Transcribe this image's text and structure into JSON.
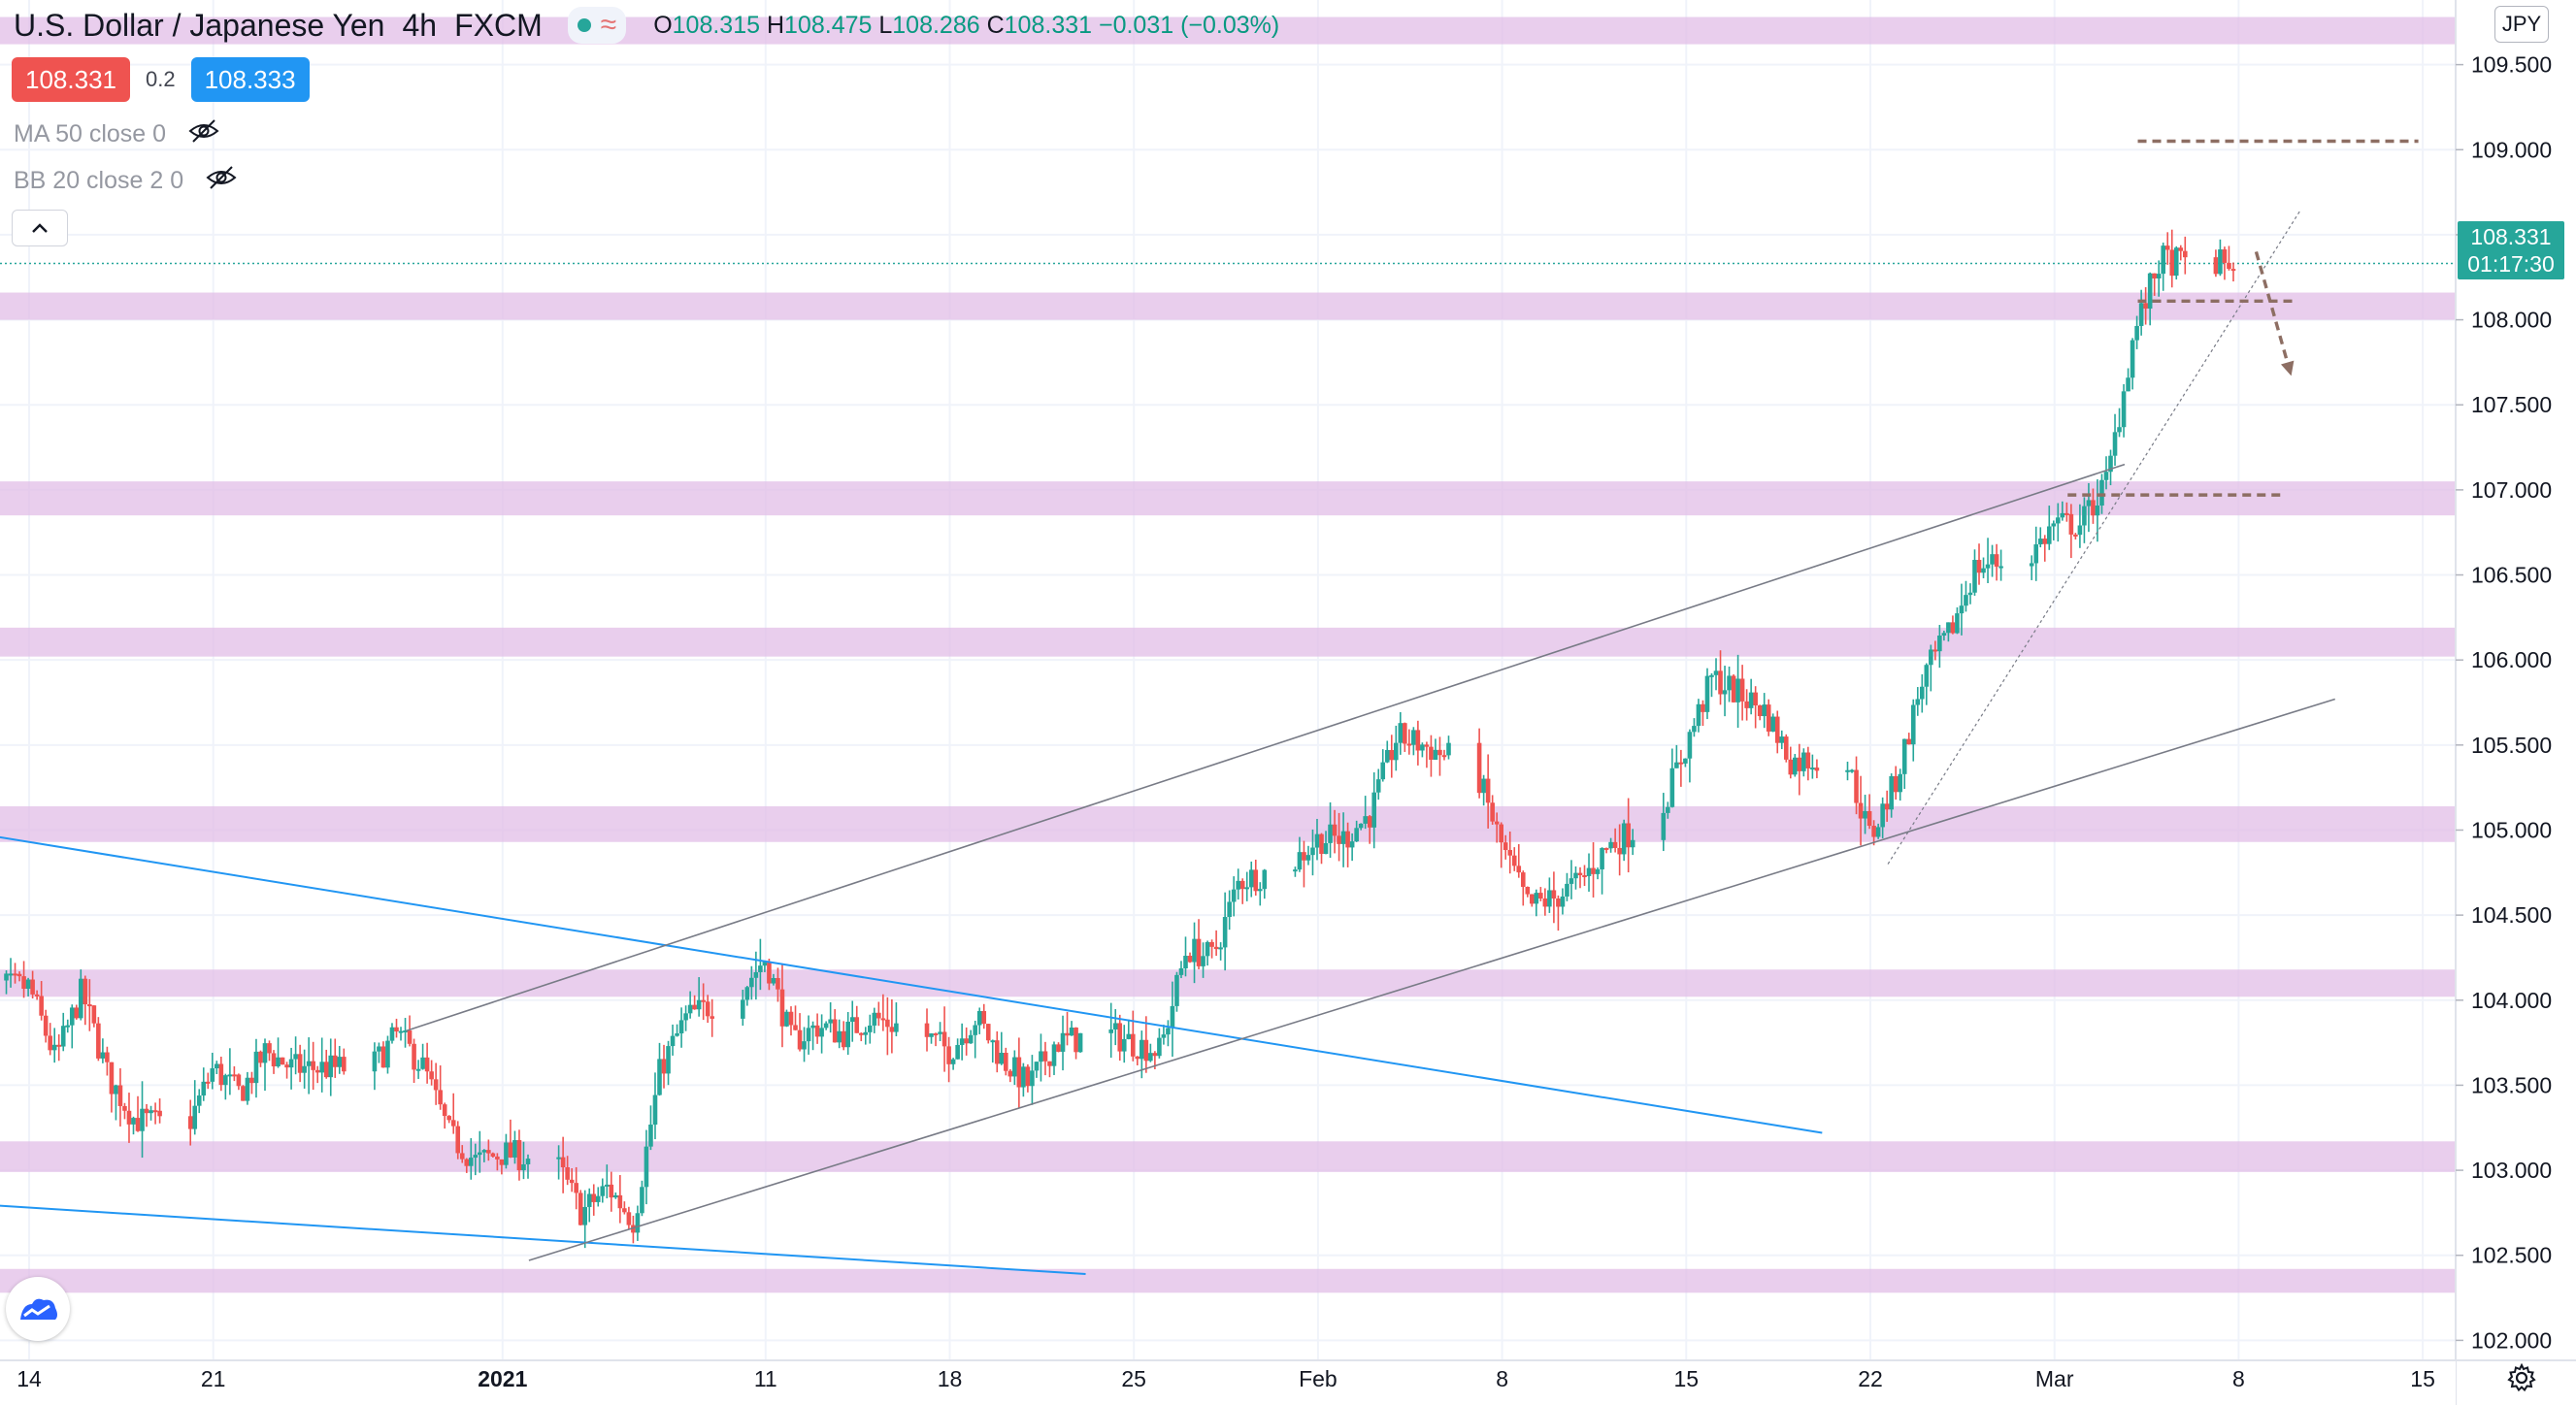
{
  "header": {
    "symbol_title": "U.S. Dollar / Japanese Yen",
    "interval": "4h",
    "source": "FXCM",
    "ohlc": {
      "open_label": "O",
      "open": "108.315",
      "high_label": "H",
      "high": "108.475",
      "low_label": "L",
      "low": "108.286",
      "close_label": "C",
      "close": "108.331",
      "change": "−0.031 (−0.03%)"
    }
  },
  "trade": {
    "sell_price": "108.331",
    "spread": "0.2",
    "buy_price": "108.333"
  },
  "indicators": [
    {
      "label": "MA 50 close 0",
      "icon": "eye-crossed-icon"
    },
    {
      "label": "BB 20 close 2 0",
      "icon": "eye-crossed-icon"
    }
  ],
  "price_axis": {
    "currency": "JPY",
    "last_price": "108.331",
    "countdown": "01:17:30"
  },
  "colors": {
    "up": "#26a69a",
    "down": "#ef5350",
    "zone": "#e1bee7",
    "trend_blue": "#2196f3",
    "channel": "#787b86",
    "dashed": "#8d6e63",
    "sell": "#ef5350",
    "buy": "#2196f3"
  },
  "chart_data": {
    "type": "candlestick",
    "y_axis": {
      "min": 101.62,
      "max": 109.88,
      "ticks": [
        102.0,
        102.5,
        103.0,
        103.5,
        104.0,
        104.5,
        105.0,
        105.5,
        106.0,
        106.5,
        107.0,
        107.5,
        108.0,
        108.5,
        109.0,
        109.5
      ]
    },
    "x_axis": {
      "labels": [
        {
          "text": "14",
          "date": "2020-12-14"
        },
        {
          "text": "21",
          "date": "2020-12-21"
        },
        {
          "text": "2021",
          "date": "2021-01-01",
          "bold": true
        },
        {
          "text": "11",
          "date": "2021-01-11"
        },
        {
          "text": "18",
          "date": "2021-01-18"
        },
        {
          "text": "25",
          "date": "2021-01-25"
        },
        {
          "text": "Feb",
          "date": "2021-02-01"
        },
        {
          "text": "8",
          "date": "2021-02-08"
        },
        {
          "text": "15",
          "date": "2021-02-15"
        },
        {
          "text": "22",
          "date": "2021-02-22"
        },
        {
          "text": "Mar",
          "date": "2021-03-01"
        },
        {
          "text": "8",
          "date": "2021-03-08"
        },
        {
          "text": "15",
          "date": "2021-03-15"
        }
      ]
    },
    "close_path": [
      [
        "2020-12-14",
        104.08
      ],
      [
        "2020-12-15",
        103.65
      ],
      [
        "2020-12-16",
        104.05
      ],
      [
        "2020-12-17",
        103.55
      ],
      [
        "2020-12-18",
        103.3
      ],
      [
        "2020-12-20",
        103.25
      ],
      [
        "2020-12-21",
        103.6
      ],
      [
        "2020-12-22",
        103.45
      ],
      [
        "2020-12-23",
        103.7
      ],
      [
        "2020-12-24",
        103.6
      ],
      [
        "2020-12-25",
        103.6
      ],
      [
        "2020-12-27",
        103.6
      ],
      [
        "2020-12-28",
        103.8
      ],
      [
        "2020-12-29",
        103.6
      ],
      [
        "2020-12-30",
        103.2
      ],
      [
        "2020-12-31",
        103.05
      ],
      [
        "2021-01-01",
        103.1
      ],
      [
        "2021-01-03",
        103.05
      ],
      [
        "2021-01-04",
        102.75
      ],
      [
        "2021-01-05",
        102.9
      ],
      [
        "2021-01-06",
        102.7
      ],
      [
        "2021-01-07",
        103.6
      ],
      [
        "2021-01-08",
        103.9
      ],
      [
        "2021-01-10",
        104.05
      ],
      [
        "2021-01-11",
        104.25
      ],
      [
        "2021-01-12",
        103.75
      ],
      [
        "2021-01-13",
        103.85
      ],
      [
        "2021-01-14",
        103.8
      ],
      [
        "2021-01-15",
        103.9
      ],
      [
        "2021-01-17",
        103.8
      ],
      [
        "2021-01-18",
        103.7
      ],
      [
        "2021-01-19",
        103.9
      ],
      [
        "2021-01-20",
        103.65
      ],
      [
        "2021-01-21",
        103.5
      ],
      [
        "2021-01-22",
        103.75
      ],
      [
        "2021-01-24",
        103.8
      ],
      [
        "2021-01-25",
        103.75
      ],
      [
        "2021-01-26",
        103.7
      ],
      [
        "2021-01-27",
        104.3
      ],
      [
        "2021-01-28",
        104.25
      ],
      [
        "2021-01-29",
        104.7
      ],
      [
        "2021-01-31",
        104.8
      ],
      [
        "2021-02-01",
        104.95
      ],
      [
        "2021-02-02",
        104.95
      ],
      [
        "2021-02-03",
        105.1
      ],
      [
        "2021-02-04",
        105.55
      ],
      [
        "2021-02-05",
        105.5
      ],
      [
        "2021-02-07",
        105.35
      ],
      [
        "2021-02-08",
        104.9
      ],
      [
        "2021-02-09",
        104.55
      ],
      [
        "2021-02-10",
        104.6
      ],
      [
        "2021-02-11",
        104.7
      ],
      [
        "2021-02-12",
        104.9
      ],
      [
        "2021-02-14",
        105.1
      ],
      [
        "2021-02-15",
        105.5
      ],
      [
        "2021-02-16",
        105.9
      ],
      [
        "2021-02-17",
        105.8
      ],
      [
        "2021-02-18",
        105.7
      ],
      [
        "2021-02-19",
        105.4
      ],
      [
        "2021-02-21",
        105.45
      ],
      [
        "2021-02-22",
        104.95
      ],
      [
        "2021-02-23",
        105.3
      ],
      [
        "2021-02-24",
        105.9
      ],
      [
        "2021-02-25",
        106.15
      ],
      [
        "2021-02-26",
        106.55
      ],
      [
        "2021-02-28",
        106.6
      ],
      [
        "2021-03-01",
        106.8
      ],
      [
        "2021-03-02",
        106.8
      ],
      [
        "2021-03-03",
        107.05
      ],
      [
        "2021-03-04",
        107.9
      ],
      [
        "2021-03-05",
        108.35
      ],
      [
        "2021-03-07",
        108.33
      ]
    ],
    "zones": [
      {
        "from": 109.62,
        "to": 109.78
      },
      {
        "from": 108.0,
        "to": 108.16
      },
      {
        "from": 106.85,
        "to": 107.05
      },
      {
        "from": 106.02,
        "to": 106.19
      },
      {
        "from": 104.93,
        "to": 105.14
      },
      {
        "from": 104.02,
        "to": 104.18
      },
      {
        "from": 102.99,
        "to": 103.17
      },
      {
        "from": 102.28,
        "to": 102.42
      }
    ],
    "lines": [
      {
        "kind": "trend",
        "color": "trend_blue",
        "from": [
          "2020-12-12 00:00",
          104.98
        ],
        "to": [
          "2021-02-20 04:00",
          103.22
        ]
      },
      {
        "kind": "trend",
        "color": "trend_blue",
        "from": [
          "2020-12-12 00:00",
          102.8
        ],
        "to": [
          "2021-01-23 04:00",
          102.39
        ]
      },
      {
        "kind": "channel",
        "from": [
          "2020-12-28 08:00",
          103.82
        ],
        "to": [
          "2021-03-03 16:00",
          107.15
        ]
      },
      {
        "kind": "channel",
        "from": [
          "2021-01-02 00:00",
          102.47
        ],
        "to": [
          "2021-03-11 16:00",
          105.77
        ]
      },
      {
        "kind": "steep",
        "dotted": true,
        "from": [
          "2021-02-22 16:00",
          104.8
        ],
        "to": [
          "2021-03-10 08:00",
          108.64
        ]
      },
      {
        "kind": "level",
        "dashed": true,
        "from": [
          "2021-03-04 04:00",
          109.05
        ],
        "to": [
          "2021-03-14 20:00",
          109.05
        ]
      },
      {
        "kind": "level",
        "dashed": true,
        "from": [
          "2021-03-04 04:00",
          108.11
        ],
        "to": [
          "2021-03-10 04:00",
          108.11
        ]
      },
      {
        "kind": "level",
        "dashed": true,
        "from": [
          "2021-03-01 12:00",
          106.97
        ],
        "to": [
          "2021-03-09 16:00",
          106.97
        ]
      },
      {
        "kind": "arrow",
        "dashed": true,
        "from": [
          "2021-03-08 16:00",
          108.4
        ],
        "to": [
          "2021-03-10 00:00",
          107.67
        ]
      }
    ],
    "last_price": 108.331
  }
}
